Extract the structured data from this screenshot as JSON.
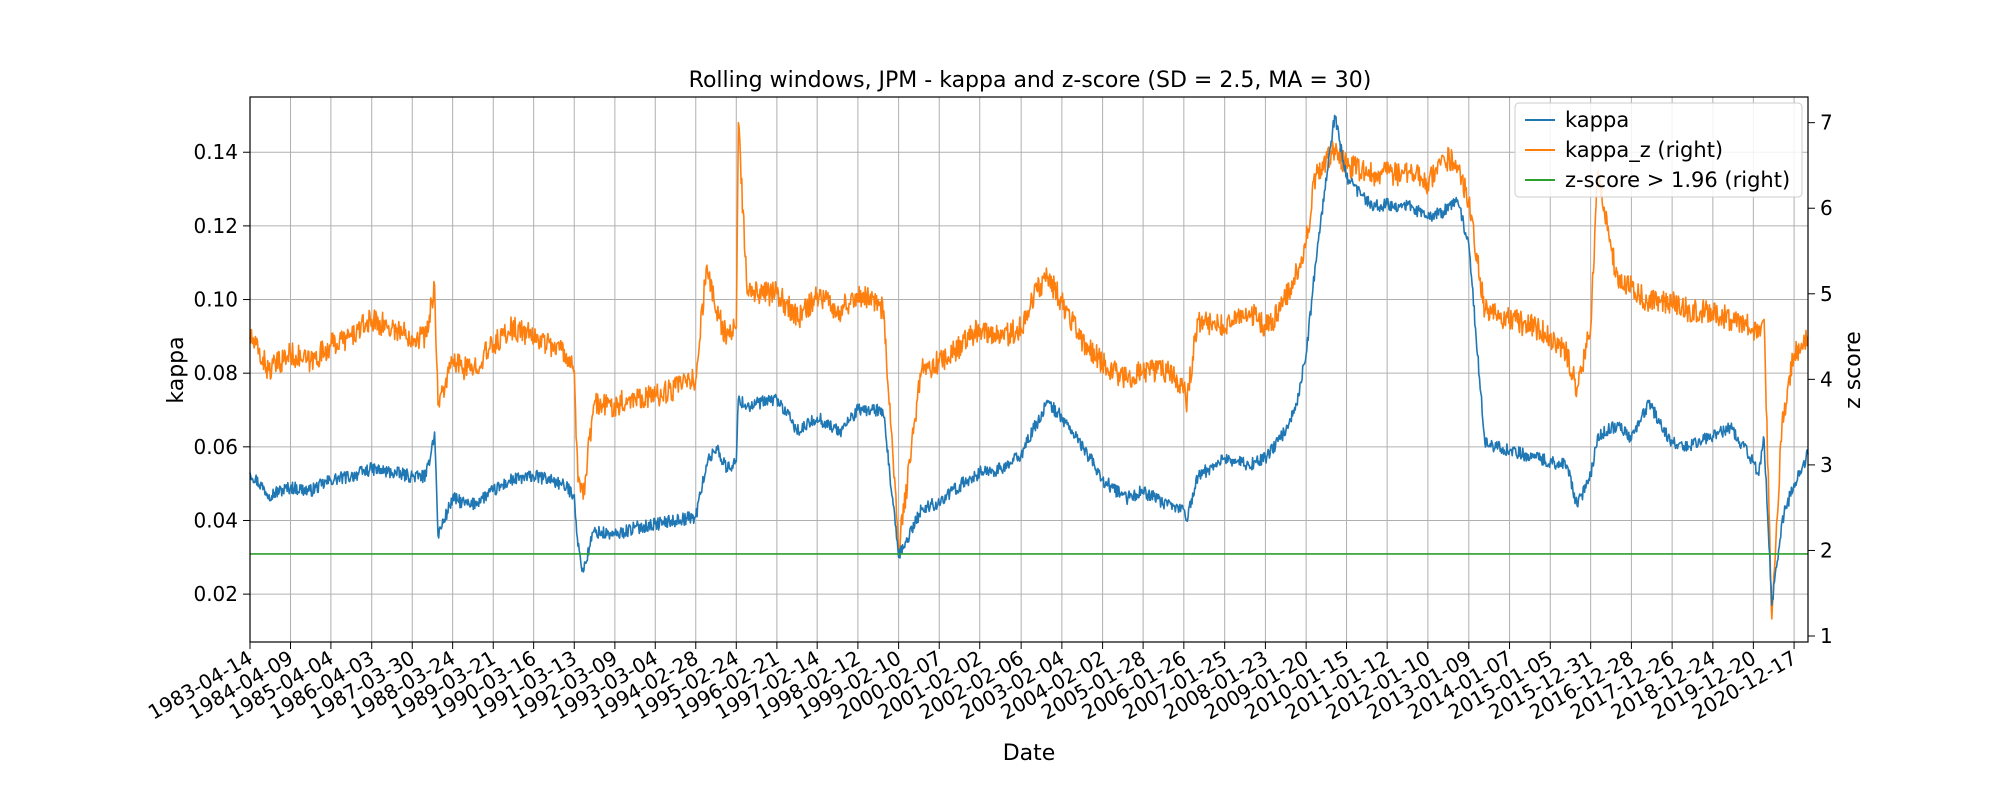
{
  "chart_data": {
    "type": "line",
    "title": "Rolling windows, JPM - kappa and z-score (SD = 2.5, MA = 30)",
    "xlabel": "Date",
    "ylabel_left": "kappa",
    "ylabel_right": "z score",
    "xlim": [
      "1983-04-14",
      "2021-04-20"
    ],
    "ylim_left": [
      0.007,
      0.155
    ],
    "ylim_right": [
      0.93,
      7.3
    ],
    "grid": true,
    "legend_position": "top-right",
    "x_tick_labels": [
      "1983-04-14",
      "1984-04-09",
      "1985-04-04",
      "1986-04-03",
      "1987-03-30",
      "1988-03-24",
      "1989-03-21",
      "1990-03-16",
      "1991-03-13",
      "1992-03-09",
      "1993-03-04",
      "1994-02-28",
      "1995-02-24",
      "1996-02-21",
      "1997-02-14",
      "1998-02-12",
      "1999-02-10",
      "2000-02-07",
      "2001-02-02",
      "2002-02-06",
      "2003-02-04",
      "2004-02-02",
      "2005-01-28",
      "2006-01-26",
      "2007-01-25",
      "2008-01-23",
      "2009-01-20",
      "2010-01-15",
      "2011-01-12",
      "2012-01-10",
      "2013-01-09",
      "2014-01-07",
      "2015-01-05",
      "2015-12-31",
      "2016-12-28",
      "2017-12-26",
      "2018-12-24",
      "2019-12-20",
      "2020-12-17"
    ],
    "y_ticks_left": [
      0.02,
      0.04,
      0.06,
      0.08,
      0.1,
      0.12,
      0.14
    ],
    "y_tick_labels_left": [
      "0.02",
      "0.04",
      "0.06",
      "0.08",
      "0.10",
      "0.12",
      "0.14"
    ],
    "y_ticks_right": [
      1,
      2,
      3,
      4,
      5,
      6,
      7
    ],
    "y_tick_labels_right": [
      "1",
      "2",
      "3",
      "4",
      "5",
      "6",
      "7"
    ],
    "series": [
      {
        "name": "kappa",
        "axis": "left",
        "color": "#1f77b4",
        "x": [
          "1983-04-14",
          "1983-10-01",
          "1984-04-09",
          "1984-10-01",
          "1985-04-04",
          "1985-10-01",
          "1986-04-03",
          "1986-10-01",
          "1987-03-30",
          "1987-08-01",
          "1987-10-15",
          "1987-11-15",
          "1988-03-24",
          "1988-09-01",
          "1989-03-21",
          "1989-09-01",
          "1990-03-16",
          "1990-09-01",
          "1991-01-01",
          "1991-03-13",
          "1991-04-15",
          "1991-06-01",
          "1991-09-01",
          "1992-03-09",
          "1992-09-01",
          "1993-03-04",
          "1993-09-01",
          "1994-02-28",
          "1994-06-01",
          "1994-09-01",
          "1994-12-01",
          "1995-02-24",
          "1995-03-15",
          "1995-06-01",
          "1996-02-21",
          "1996-09-01",
          "1997-02-14",
          "1997-09-01",
          "1998-02-12",
          "1998-08-15",
          "1998-10-01",
          "1999-02-10",
          "1999-09-01",
          "2000-02-07",
          "2000-09-01",
          "2001-02-02",
          "2001-09-01",
          "2002-02-06",
          "2002-06-01",
          "2002-10-01",
          "2003-02-04",
          "2003-09-01",
          "2004-02-02",
          "2004-09-01",
          "2005-01-28",
          "2005-09-01",
          "2006-01-26",
          "2006-02-15",
          "2006-06-01",
          "2007-01-25",
          "2007-09-01",
          "2008-01-23",
          "2008-06-01",
          "2008-10-15",
          "2009-01-20",
          "2009-04-15",
          "2009-10-01",
          "2010-01-15",
          "2010-09-01",
          "2011-01-12",
          "2011-09-01",
          "2012-01-10",
          "2012-06-01",
          "2012-10-01",
          "2013-01-09",
          "2013-06-01",
          "2014-01-07",
          "2014-09-01",
          "2015-01-05",
          "2015-06-01",
          "2015-09-01",
          "2015-12-31",
          "2016-03-01",
          "2016-09-01",
          "2016-12-28",
          "2017-06-01",
          "2017-12-26",
          "2018-06-01",
          "2018-12-24",
          "2019-06-01",
          "2019-12-20",
          "2020-02-01",
          "2020-03-25",
          "2020-06-01",
          "2020-09-01",
          "2020-12-17",
          "2021-04-20"
        ],
        "y": [
          0.053,
          0.047,
          0.049,
          0.048,
          0.051,
          0.052,
          0.054,
          0.053,
          0.052,
          0.052,
          0.064,
          0.036,
          0.046,
          0.044,
          0.048,
          0.051,
          0.052,
          0.051,
          0.049,
          0.047,
          0.033,
          0.026,
          0.037,
          0.036,
          0.038,
          0.039,
          0.04,
          0.041,
          0.055,
          0.06,
          0.054,
          0.056,
          0.073,
          0.071,
          0.073,
          0.064,
          0.068,
          0.064,
          0.07,
          0.07,
          0.068,
          0.03,
          0.043,
          0.045,
          0.05,
          0.053,
          0.054,
          0.058,
          0.065,
          0.072,
          0.068,
          0.059,
          0.051,
          0.046,
          0.048,
          0.044,
          0.043,
          0.04,
          0.052,
          0.057,
          0.055,
          0.057,
          0.062,
          0.07,
          0.085,
          0.11,
          0.15,
          0.133,
          0.125,
          0.126,
          0.125,
          0.122,
          0.124,
          0.127,
          0.115,
          0.061,
          0.059,
          0.057,
          0.056,
          0.055,
          0.044,
          0.052,
          0.063,
          0.066,
          0.062,
          0.072,
          0.061,
          0.06,
          0.063,
          0.065,
          0.056,
          0.053,
          0.062,
          0.017,
          0.04,
          0.05,
          0.058
        ]
      },
      {
        "name": "kappa_z (right)",
        "axis": "right",
        "color": "#ff7f0e",
        "x": [
          "1983-04-14",
          "1983-10-01",
          "1984-04-09",
          "1984-10-01",
          "1985-04-04",
          "1985-10-01",
          "1986-04-03",
          "1986-10-01",
          "1987-03-30",
          "1987-08-01",
          "1987-10-15",
          "1987-11-15",
          "1988-03-24",
          "1988-09-01",
          "1989-03-21",
          "1989-09-01",
          "1990-03-16",
          "1990-09-01",
          "1991-01-01",
          "1991-03-13",
          "1991-04-15",
          "1991-06-01",
          "1991-09-01",
          "1992-03-09",
          "1992-09-01",
          "1993-03-04",
          "1993-09-01",
          "1994-02-28",
          "1994-06-01",
          "1994-09-01",
          "1994-12-01",
          "1995-02-24",
          "1995-03-15",
          "1995-06-01",
          "1996-02-21",
          "1996-09-01",
          "1997-02-14",
          "1997-09-01",
          "1998-02-12",
          "1998-08-15",
          "1998-10-01",
          "1999-02-10",
          "1999-09-01",
          "2000-02-07",
          "2000-09-01",
          "2001-02-02",
          "2001-09-01",
          "2002-02-06",
          "2002-06-01",
          "2002-10-01",
          "2003-02-04",
          "2003-09-01",
          "2004-02-02",
          "2004-09-01",
          "2005-01-28",
          "2005-09-01",
          "2006-01-26",
          "2006-02-15",
          "2006-06-01",
          "2007-01-25",
          "2007-09-01",
          "2008-01-23",
          "2008-06-01",
          "2008-10-15",
          "2009-01-20",
          "2009-04-15",
          "2009-10-01",
          "2010-01-15",
          "2010-09-01",
          "2011-01-12",
          "2011-09-01",
          "2012-01-10",
          "2012-06-01",
          "2012-10-01",
          "2013-01-09",
          "2013-06-01",
          "2014-01-07",
          "2014-09-01",
          "2015-01-05",
          "2015-06-01",
          "2015-09-01",
          "2015-12-31",
          "2016-03-01",
          "2016-09-01",
          "2016-12-28",
          "2017-06-01",
          "2017-12-26",
          "2018-06-01",
          "2018-12-24",
          "2019-06-01",
          "2019-12-20",
          "2020-02-01",
          "2020-03-25",
          "2020-06-01",
          "2020-09-01",
          "2020-12-17",
          "2021-04-20"
        ],
        "y": [
          4.5,
          4.1,
          4.3,
          4.2,
          4.4,
          4.5,
          4.7,
          4.6,
          4.5,
          4.5,
          5.1,
          3.7,
          4.2,
          4.1,
          4.4,
          4.6,
          4.5,
          4.4,
          4.3,
          4.1,
          2.8,
          2.6,
          3.7,
          3.7,
          3.8,
          3.8,
          3.9,
          4.0,
          5.3,
          4.8,
          4.5,
          4.6,
          7.0,
          5.0,
          5.0,
          4.7,
          5.0,
          4.8,
          5.0,
          4.9,
          4.8,
          2.0,
          4.1,
          4.2,
          4.4,
          4.6,
          4.5,
          4.6,
          5.0,
          5.2,
          4.9,
          4.4,
          4.2,
          4.0,
          4.1,
          4.1,
          3.9,
          3.7,
          4.7,
          4.6,
          4.8,
          4.6,
          4.8,
          5.2,
          5.6,
          6.4,
          6.7,
          6.5,
          6.4,
          6.4,
          6.4,
          6.3,
          6.6,
          6.5,
          6.1,
          4.8,
          4.7,
          4.6,
          4.5,
          4.3,
          3.9,
          4.6,
          6.4,
          5.1,
          5.1,
          4.9,
          4.9,
          4.8,
          4.8,
          4.7,
          4.6,
          4.5,
          4.7,
          1.2,
          3.5,
          4.3,
          4.5
        ]
      },
      {
        "name": "z-score > 1.96 (right)",
        "axis": "right",
        "color": "#2ca02c",
        "x": [
          "1983-04-14",
          "2021-04-20"
        ],
        "y": [
          1.96,
          1.96
        ]
      }
    ]
  }
}
